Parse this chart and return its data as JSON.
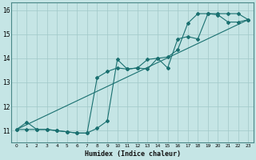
{
  "xlabel": "Humidex (Indice chaleur)",
  "xlim": [
    -0.5,
    23.5
  ],
  "ylim": [
    10.5,
    16.3
  ],
  "xticks": [
    0,
    1,
    2,
    3,
    4,
    5,
    6,
    7,
    8,
    9,
    10,
    11,
    12,
    13,
    14,
    15,
    16,
    17,
    18,
    19,
    20,
    21,
    22,
    23
  ],
  "yticks": [
    11,
    12,
    13,
    14,
    15,
    16
  ],
  "bg_color": "#c5e5e5",
  "grid_color": "#a0c8c8",
  "line_color": "#1a7070",
  "line1_x": [
    0,
    1,
    2,
    3,
    4,
    5,
    6,
    7,
    8,
    9,
    10,
    11,
    12,
    13,
    14,
    15,
    16,
    17,
    18,
    19,
    20,
    21,
    22,
    23
  ],
  "line1_y": [
    11.05,
    11.35,
    11.05,
    11.05,
    11.0,
    10.95,
    10.9,
    10.9,
    11.1,
    11.4,
    13.95,
    13.55,
    13.6,
    13.55,
    14.0,
    13.6,
    14.8,
    14.9,
    14.8,
    15.85,
    15.8,
    15.5,
    15.5,
    15.6
  ],
  "line2_x": [
    0,
    1,
    2,
    3,
    4,
    5,
    6,
    7,
    8,
    9,
    10,
    11,
    12,
    13,
    14,
    15,
    16,
    17,
    18,
    19,
    20,
    21,
    22,
    23
  ],
  "line2_y": [
    11.05,
    11.05,
    11.05,
    11.05,
    11.0,
    10.95,
    10.9,
    10.9,
    13.2,
    13.45,
    13.6,
    13.55,
    13.6,
    13.95,
    14.0,
    14.05,
    14.35,
    15.45,
    15.85,
    15.85,
    15.85,
    15.85,
    15.85,
    15.6
  ],
  "line3_x": [
    0,
    23
  ],
  "line3_y": [
    11.05,
    15.6
  ]
}
